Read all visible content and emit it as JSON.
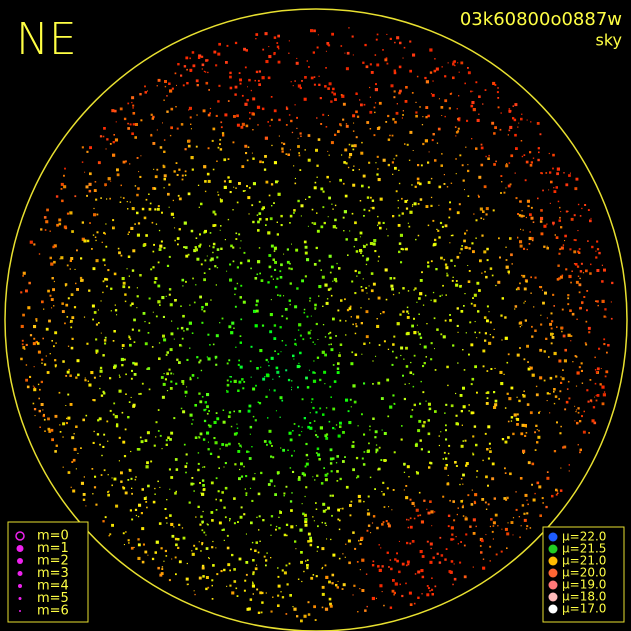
{
  "header": {
    "corner": "NE",
    "frame": "03k60800o0887w",
    "kind": "sky"
  },
  "legend_m": {
    "items": [
      "m=0",
      "m=1",
      "m=2",
      "m=3",
      "m=4",
      "m=5",
      "m=6"
    ]
  },
  "legend_mu": {
    "items": [
      {
        "label": "μ=22.0",
        "color": "#1e5cff"
      },
      {
        "label": "μ=21.5",
        "color": "#22cc22"
      },
      {
        "label": "μ=21.0",
        "color": "#ffbb00"
      },
      {
        "label": "μ=20.0",
        "color": "#ff6633"
      },
      {
        "label": "μ=19.0",
        "color": "#ff7777"
      },
      {
        "label": "μ=18.0",
        "color": "#ffbbbb"
      },
      {
        "label": "μ=17.0",
        "color": "#ffffff"
      }
    ]
  }
}
